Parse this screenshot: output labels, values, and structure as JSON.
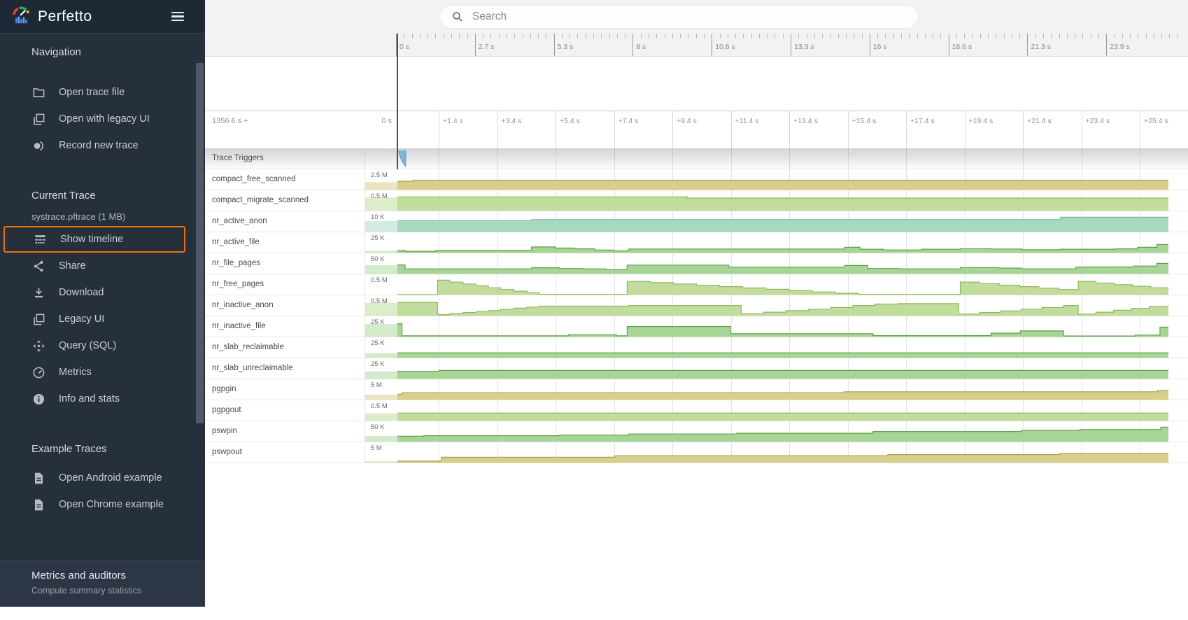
{
  "app": {
    "title": "Perfetto"
  },
  "colors": {
    "accent_orange": "#e8710a",
    "sidebar_bg": "#262f3c",
    "sidebar_header_bg": "#1e2936",
    "topbar_bg": "#f2f2f3",
    "marker": "#4b4f52",
    "caret_blue": "#82b4d8"
  },
  "search": {
    "placeholder": "Search"
  },
  "sidebar": {
    "sections": [
      {
        "title": "Navigation",
        "items": [
          {
            "icon": "folder",
            "label": "Open trace file"
          },
          {
            "icon": "layers",
            "label": "Open with legacy UI"
          },
          {
            "icon": "record",
            "label": "Record new trace"
          }
        ]
      },
      {
        "title": "Current Trace",
        "file": "systrace.pftrace (1 MB)",
        "items": [
          {
            "icon": "timeline",
            "label": "Show timeline",
            "highlight": true
          },
          {
            "icon": "share",
            "label": "Share"
          },
          {
            "icon": "download",
            "label": "Download"
          },
          {
            "icon": "layers",
            "label": "Legacy UI"
          },
          {
            "icon": "query",
            "label": "Query (SQL)"
          },
          {
            "icon": "gauge",
            "label": "Metrics"
          },
          {
            "icon": "info",
            "label": "Info and stats"
          }
        ]
      },
      {
        "title": "Example Traces",
        "items": [
          {
            "icon": "doc",
            "label": "Open Android example"
          },
          {
            "icon": "doc",
            "label": "Open Chrome example"
          }
        ]
      }
    ],
    "footer": {
      "title": "Metrics and auditors",
      "subtitle": "Compute summary statistics"
    }
  },
  "timeline": {
    "overview": {
      "tick_labels": [
        "0 s",
        "2.7 s",
        "5.3 s",
        "8 s",
        "10.6 s",
        "13.3 s",
        "16 s",
        "18.6 s",
        "21.3 s",
        "23.9 s"
      ]
    },
    "axis": {
      "offset_label": "1356.6 s +",
      "zero_label": "0 s",
      "tick_labels": [
        "+1.4 s",
        "+3.4 s",
        "+5.4 s",
        "+7.4 s",
        "+9.4 s",
        "+11.4 s",
        "+13.4 s",
        "+15.4 s",
        "+17.4 s",
        "+19.4 s",
        "+21.4 s",
        "+23.4 s",
        "+25.4 s"
      ]
    }
  },
  "palettes": {
    "olive": {
      "fill": "#d8cf8c",
      "stroke": "#aaa152",
      "tint": "#eae4c2"
    },
    "green1": {
      "fill": "#c2dc9d",
      "stroke": "#8cb95e",
      "tint": "#deedc9"
    },
    "green2": {
      "fill": "#a6d595",
      "stroke": "#639f4c",
      "tint": "#d3ebca"
    },
    "teal": {
      "fill": "#a8d7c2",
      "stroke": "#74b998",
      "tint": "#d4ebe1"
    }
  },
  "tracks": [
    {
      "name": "Trace Triggers",
      "header": true
    },
    {
      "name": "compact_free_scanned",
      "value": "2.5 M",
      "palette": "olive",
      "pre": 0.42,
      "points": [
        [
          0,
          0.46
        ],
        [
          0.02,
          0.52
        ],
        [
          1,
          0.52
        ]
      ]
    },
    {
      "name": "compact_migrate_scanned",
      "value": "0.5 M",
      "palette": "green1",
      "pre": 0.72,
      "points": [
        [
          0,
          0.75
        ],
        [
          0.376,
          0.68
        ],
        [
          1,
          0.68
        ]
      ]
    },
    {
      "name": "nr_active_anon",
      "value": "10 K",
      "palette": "teal",
      "pre": 0.58,
      "points": [
        [
          0,
          0.6
        ],
        [
          0.174,
          0.65
        ],
        [
          0.86,
          0.78
        ],
        [
          1,
          0.78
        ]
      ]
    },
    {
      "name": "nr_active_file",
      "value": "25 K",
      "palette": "green2",
      "pre": 0.12,
      "points": [
        [
          0,
          0.13
        ],
        [
          0.01,
          0.09
        ],
        [
          0.05,
          0.14
        ],
        [
          0.174,
          0.32
        ],
        [
          0.205,
          0.26
        ],
        [
          0.23,
          0.22
        ],
        [
          0.256,
          0.15
        ],
        [
          0.28,
          0.11
        ],
        [
          0.3,
          0.21
        ],
        [
          0.58,
          0.3
        ],
        [
          0.6,
          0.2
        ],
        [
          0.63,
          0.16
        ],
        [
          0.68,
          0.2
        ],
        [
          0.73,
          0.23
        ],
        [
          0.77,
          0.21
        ],
        [
          0.81,
          0.17
        ],
        [
          0.86,
          0.2
        ],
        [
          0.93,
          0.22
        ],
        [
          0.96,
          0.3
        ],
        [
          0.985,
          0.45
        ],
        [
          1,
          0.45
        ]
      ]
    },
    {
      "name": "nr_file_pages",
      "value": "50 K",
      "palette": "green2",
      "pre": 0.46,
      "points": [
        [
          0,
          0.48
        ],
        [
          0.01,
          0.27
        ],
        [
          0.174,
          0.33
        ],
        [
          0.21,
          0.29
        ],
        [
          0.24,
          0.27
        ],
        [
          0.27,
          0.23
        ],
        [
          0.298,
          0.47
        ],
        [
          0.43,
          0.36
        ],
        [
          0.58,
          0.45
        ],
        [
          0.61,
          0.29
        ],
        [
          0.65,
          0.27
        ],
        [
          0.73,
          0.34
        ],
        [
          0.78,
          0.31
        ],
        [
          0.81,
          0.27
        ],
        [
          0.88,
          0.37
        ],
        [
          0.955,
          0.42
        ],
        [
          0.985,
          0.56
        ],
        [
          1,
          0.56
        ]
      ]
    },
    {
      "name": "nr_free_pages",
      "value": "0.5 M",
      "palette": "green1",
      "pre": 0.02,
      "points": [
        [
          0,
          0.02
        ],
        [
          0.052,
          0.78
        ],
        [
          0.068,
          0.68
        ],
        [
          0.085,
          0.58
        ],
        [
          0.102,
          0.48
        ],
        [
          0.118,
          0.38
        ],
        [
          0.134,
          0.29
        ],
        [
          0.151,
          0.2
        ],
        [
          0.168,
          0.12
        ],
        [
          0.184,
          0.03
        ],
        [
          0.298,
          0.72
        ],
        [
          0.328,
          0.65
        ],
        [
          0.358,
          0.58
        ],
        [
          0.388,
          0.51
        ],
        [
          0.418,
          0.44
        ],
        [
          0.448,
          0.37
        ],
        [
          0.478,
          0.3
        ],
        [
          0.508,
          0.23
        ],
        [
          0.538,
          0.16
        ],
        [
          0.568,
          0.09
        ],
        [
          0.598,
          0.03
        ],
        [
          0.73,
          0.68
        ],
        [
          0.755,
          0.6
        ],
        [
          0.781,
          0.52
        ],
        [
          0.807,
          0.44
        ],
        [
          0.832,
          0.36
        ],
        [
          0.858,
          0.29
        ],
        [
          0.883,
          0.72
        ],
        [
          0.906,
          0.63
        ],
        [
          0.93,
          0.54
        ],
        [
          0.953,
          0.46
        ],
        [
          0.977,
          0.38
        ],
        [
          1,
          0.3
        ]
      ]
    },
    {
      "name": "nr_inactive_anon",
      "value": "0.5 M",
      "palette": "green1",
      "pre": 0.7,
      "points": [
        [
          0,
          0.72
        ],
        [
          0.052,
          0.07
        ],
        [
          0.068,
          0.13
        ],
        [
          0.085,
          0.18
        ],
        [
          0.102,
          0.23
        ],
        [
          0.118,
          0.29
        ],
        [
          0.134,
          0.35
        ],
        [
          0.151,
          0.41
        ],
        [
          0.168,
          0.47
        ],
        [
          0.184,
          0.52
        ],
        [
          0.3,
          0.55
        ],
        [
          0.446,
          0.12
        ],
        [
          0.475,
          0.2
        ],
        [
          0.504,
          0.28
        ],
        [
          0.533,
          0.36
        ],
        [
          0.562,
          0.45
        ],
        [
          0.591,
          0.55
        ],
        [
          0.619,
          0.63
        ],
        [
          0.65,
          0.65
        ],
        [
          0.728,
          0.1
        ],
        [
          0.755,
          0.18
        ],
        [
          0.782,
          0.27
        ],
        [
          0.809,
          0.36
        ],
        [
          0.836,
          0.45
        ],
        [
          0.864,
          0.55
        ],
        [
          0.883,
          0.1
        ],
        [
          0.906,
          0.2
        ],
        [
          0.929,
          0.3
        ],
        [
          0.952,
          0.4
        ],
        [
          0.975,
          0.5
        ],
        [
          1,
          0.58
        ]
      ]
    },
    {
      "name": "nr_inactive_file",
      "value": "25 K",
      "palette": "green2",
      "pre": 0.68,
      "points": [
        [
          0,
          0.7
        ],
        [
          0.006,
          0.06
        ],
        [
          0.222,
          0.11
        ],
        [
          0.284,
          0.06
        ],
        [
          0.298,
          0.55
        ],
        [
          0.432,
          0.17
        ],
        [
          0.617,
          0.07
        ],
        [
          0.77,
          0.2
        ],
        [
          0.808,
          0.32
        ],
        [
          0.864,
          0.05
        ],
        [
          0.957,
          0.1
        ],
        [
          0.989,
          0.52
        ],
        [
          1,
          0.52
        ]
      ]
    },
    {
      "name": "nr_slab_reclaimable",
      "value": "25 K",
      "palette": "green2",
      "pre": 0.26,
      "points": [
        [
          0,
          0.27
        ],
        [
          1,
          0.27
        ]
      ]
    },
    {
      "name": "nr_slab_unreclaimable",
      "value": "25 K",
      "palette": "green2",
      "pre": 0.4,
      "points": [
        [
          0,
          0.4
        ],
        [
          0.054,
          0.45
        ],
        [
          1,
          0.45
        ]
      ]
    },
    {
      "name": "pgpgin",
      "value": "5 M",
      "palette": "olive",
      "pre": 0.28,
      "points": [
        [
          0,
          0.3
        ],
        [
          0.006,
          0.38
        ],
        [
          0.579,
          0.43
        ],
        [
          0.986,
          0.5
        ],
        [
          1,
          0.5
        ]
      ]
    },
    {
      "name": "pgpgout",
      "value": "0.5 M",
      "palette": "green1",
      "pre": 0.4,
      "points": [
        [
          0,
          0.42
        ],
        [
          1,
          0.42
        ]
      ]
    },
    {
      "name": "pswpin",
      "value": "50 K",
      "palette": "green2",
      "pre": 0.32,
      "points": [
        [
          0,
          0.3
        ],
        [
          0.034,
          0.33
        ],
        [
          0.21,
          0.36
        ],
        [
          0.3,
          0.42
        ],
        [
          0.44,
          0.46
        ],
        [
          0.617,
          0.55
        ],
        [
          0.81,
          0.62
        ],
        [
          0.885,
          0.66
        ],
        [
          0.99,
          0.78
        ],
        [
          1,
          0.78
        ]
      ]
    },
    {
      "name": "pswpout",
      "value": "5 M",
      "palette": "olive",
      "pre": 0.08,
      "points": [
        [
          0,
          0.1
        ],
        [
          0.057,
          0.3
        ],
        [
          0.282,
          0.38
        ],
        [
          0.636,
          0.44
        ],
        [
          0.859,
          0.5
        ],
        [
          1,
          0.5
        ]
      ]
    }
  ]
}
